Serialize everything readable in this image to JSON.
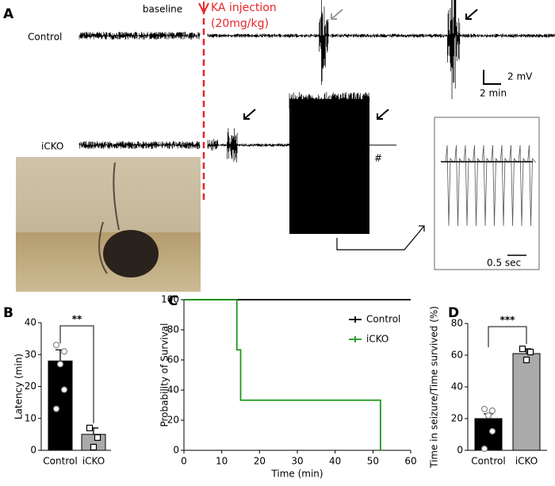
{
  "panel_a": {
    "label": "A",
    "baseline": "baseline",
    "injection": "KA injection",
    "dose": "(20mg/kg)",
    "traces": [
      "Control",
      "iCKO"
    ],
    "scale_y": "2 mV",
    "scale_x": "2 min",
    "inset_scale": "0.5 sec",
    "mark": "#"
  },
  "chart_data": [
    {
      "type": "bar",
      "panel": "B",
      "ylabel": "Latency (min)",
      "categories": [
        "Control",
        "iCKO"
      ],
      "values": [
        28,
        5
      ],
      "errors": [
        3.5,
        2
      ],
      "points": [
        [
          33,
          31,
          27,
          19,
          13
        ],
        [
          7,
          4,
          1
        ]
      ],
      "colors": [
        "#000000",
        "#aaaaaa"
      ],
      "ylim": [
        0,
        40
      ],
      "yticks": [
        0,
        10,
        20,
        30,
        40
      ],
      "significance": "**"
    },
    {
      "type": "line",
      "panel": "C",
      "ylabel": "Probability of Survival",
      "xlabel": "Time (min)",
      "xlim": [
        0,
        60
      ],
      "xticks": [
        0,
        10,
        20,
        30,
        40,
        50,
        60
      ],
      "ylim": [
        0,
        100
      ],
      "yticks": [
        0,
        20,
        40,
        60,
        80,
        100
      ],
      "legend": "upper right",
      "series": [
        {
          "name": "Control",
          "color": "#000000",
          "x": [
            0,
            60
          ],
          "values": [
            100,
            100
          ]
        },
        {
          "name": "iCKO",
          "color": "#1a9a1a",
          "x": [
            0,
            14,
            14,
            15,
            15,
            52,
            52
          ],
          "values": [
            100,
            100,
            66.7,
            66.7,
            33.3,
            33.3,
            0
          ]
        }
      ]
    },
    {
      "type": "bar",
      "panel": "D",
      "ylabel": "Time in seizure/Time survived (%)",
      "categories": [
        "Control",
        "iCKO"
      ],
      "values": [
        20,
        61
      ],
      "errors": [
        3,
        3
      ],
      "points": [
        [
          26,
          25,
          22,
          12,
          1
        ],
        [
          64,
          62,
          57
        ]
      ],
      "colors": [
        "#000000",
        "#aaaaaa"
      ],
      "ylim": [
        0,
        80
      ],
      "yticks": [
        0,
        20,
        40,
        60,
        80
      ],
      "significance": "***"
    }
  ]
}
